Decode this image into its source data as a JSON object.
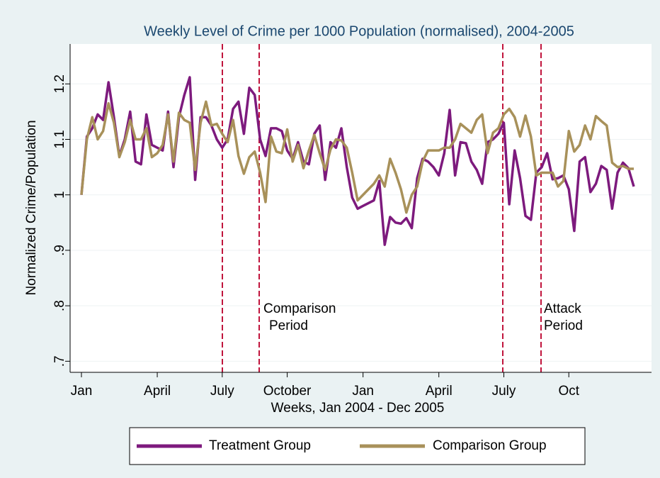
{
  "chart_data": {
    "type": "line",
    "title": "Weekly Level of Crime per 1000 Population (normalised), 2004-2005",
    "x_label": "Weeks, Jan 2004 - Dec 2005",
    "y_label": "Normalized Crime/Population",
    "categories": [
      "Jan",
      null,
      null,
      null,
      null,
      null,
      null,
      null,
      null,
      null,
      null,
      null,
      null,
      null,
      "April",
      null,
      null,
      null,
      null,
      null,
      null,
      null,
      null,
      null,
      null,
      null,
      "July",
      null,
      null,
      null,
      null,
      null,
      null,
      null,
      null,
      null,
      null,
      null,
      "October",
      null,
      null,
      null,
      null,
      null,
      null,
      null,
      null,
      null,
      null,
      null,
      null,
      null,
      "Jan",
      null,
      null,
      null,
      null,
      null,
      null,
      null,
      null,
      null,
      null,
      null,
      null,
      null,
      "April",
      null,
      null,
      null,
      null,
      null,
      null,
      null,
      null,
      null,
      null,
      null,
      "July",
      null,
      null,
      null,
      null,
      null,
      null,
      null,
      null,
      null,
      null,
      null,
      "Oct",
      null,
      null,
      null,
      null,
      null,
      null,
      null,
      null,
      null,
      null,
      null,
      null
    ],
    "series": [
      {
        "name": "Treatment Group",
        "color": "#7d1a7d",
        "values": [
          1.0,
          1.105,
          1.12,
          1.145,
          1.135,
          1.203,
          1.14,
          1.07,
          1.1,
          1.15,
          1.06,
          1.055,
          1.145,
          1.09,
          1.085,
          1.08,
          1.15,
          1.05,
          1.14,
          1.18,
          1.212,
          1.027,
          1.14,
          1.14,
          1.125,
          1.1,
          1.085,
          1.1,
          1.155,
          1.168,
          1.11,
          1.193,
          1.18,
          1.1,
          1.07,
          1.12,
          1.12,
          1.115,
          1.08,
          1.065,
          1.095,
          1.06,
          1.055,
          1.11,
          1.125,
          1.027,
          1.095,
          1.085,
          1.12,
          1.05,
          0.995,
          0.975,
          0.98,
          0.985,
          0.99,
          1.025,
          0.91,
          0.96,
          0.95,
          0.948,
          0.958,
          0.94,
          1.03,
          1.065,
          1.06,
          1.05,
          1.035,
          1.075,
          1.153,
          1.035,
          1.095,
          1.093,
          1.06,
          1.045,
          1.02,
          1.095,
          1.1,
          1.11,
          1.13,
          0.983,
          1.08,
          1.03,
          0.962,
          0.955,
          1.04,
          1.05,
          1.075,
          1.028,
          1.03,
          1.035,
          1.01,
          0.935,
          1.06,
          1.068,
          1.005,
          1.02,
          1.052,
          1.045,
          0.975,
          1.04,
          1.058,
          1.048,
          1.015
        ]
      },
      {
        "name": "Comparison Group",
        "color": "#a8915a",
        "values": [
          1.0,
          1.1,
          1.14,
          1.1,
          1.115,
          1.165,
          1.13,
          1.068,
          1.095,
          1.135,
          1.1,
          1.1,
          1.12,
          1.068,
          1.075,
          1.09,
          1.145,
          1.06,
          1.148,
          1.135,
          1.13,
          1.045,
          1.13,
          1.168,
          1.125,
          1.128,
          1.11,
          1.095,
          1.135,
          1.07,
          1.038,
          1.068,
          1.078,
          1.04,
          0.987,
          1.105,
          1.078,
          1.075,
          1.118,
          1.06,
          1.09,
          1.048,
          1.08,
          1.108,
          1.075,
          1.045,
          1.082,
          1.1,
          1.098,
          1.085,
          1.04,
          0.99,
          1.0,
          1.01,
          1.02,
          1.035,
          1.015,
          1.065,
          1.04,
          1.01,
          0.968,
          1.0,
          1.015,
          1.06,
          1.08,
          1.08,
          1.08,
          1.085,
          1.085,
          1.1,
          1.128,
          1.12,
          1.112,
          1.135,
          1.145,
          1.075,
          1.112,
          1.12,
          1.145,
          1.155,
          1.14,
          1.105,
          1.143,
          1.105,
          1.035,
          1.04,
          1.04,
          1.04,
          1.015,
          1.025,
          1.115,
          1.078,
          1.09,
          1.125,
          1.1,
          1.142,
          1.133,
          1.125,
          1.058,
          1.05,
          1.052,
          1.047,
          1.047
        ]
      }
    ],
    "ylim": [
      0.68,
      1.272
    ],
    "yticks": [
      {
        "value": 0.7,
        "label": ".7"
      },
      {
        "value": 0.8,
        "label": ".8"
      },
      {
        "value": 0.9,
        "label": ".9"
      },
      1,
      1.1,
      1.2
    ],
    "grid": true,
    "annotations": [
      [
        "Comparison",
        "Period"
      ],
      [
        "Attack",
        "Period"
      ]
    ]
  }
}
